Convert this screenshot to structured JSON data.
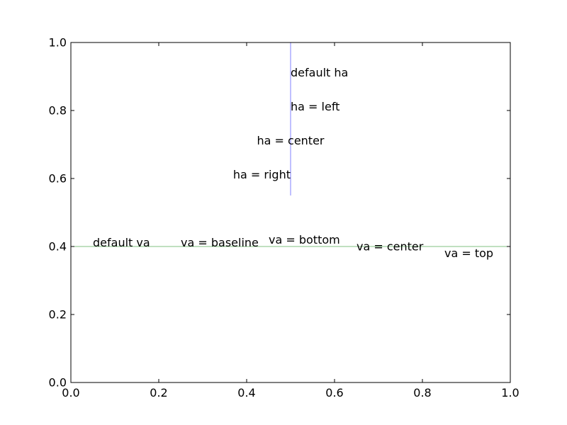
{
  "chart_data": {
    "type": "line",
    "title": "",
    "xlabel": "",
    "ylabel": "",
    "xlim": [
      0.0,
      1.0
    ],
    "ylim": [
      0.0,
      1.0
    ],
    "grid": false,
    "x_tick_labels": [
      "0.0",
      "0.2",
      "0.4",
      "0.6",
      "0.8",
      "1.0"
    ],
    "x_tick_values": [
      0.0,
      0.2,
      0.4,
      0.6,
      0.8,
      1.0
    ],
    "y_tick_labels": [
      "0.0",
      "0.2",
      "0.4",
      "0.6",
      "0.8",
      "1.0"
    ],
    "y_tick_values": [
      0.0,
      0.2,
      0.4,
      0.6,
      0.8,
      1.0
    ],
    "series": [
      {
        "color": "#8080ff",
        "x": [
          0.5,
          0.5
        ],
        "y": [
          0.55,
          1.0
        ]
      },
      {
        "color": "#80c080",
        "x": [
          0.0,
          1.0
        ],
        "y": [
          0.4,
          0.4
        ]
      }
    ],
    "annotations": [
      {
        "text": "default ha",
        "x": 0.5,
        "y": 0.9,
        "ha": "left",
        "va": "baseline"
      },
      {
        "text": "ha = left",
        "x": 0.5,
        "y": 0.8,
        "ha": "left",
        "va": "baseline"
      },
      {
        "text": "ha = center",
        "x": 0.5,
        "y": 0.7,
        "ha": "center",
        "va": "baseline"
      },
      {
        "text": "ha = right",
        "x": 0.5,
        "y": 0.6,
        "ha": "right",
        "va": "baseline"
      },
      {
        "text": "default va",
        "x": 0.05,
        "y": 0.4,
        "ha": "left",
        "va": "baseline"
      },
      {
        "text": "va = baseline",
        "x": 0.25,
        "y": 0.4,
        "ha": "left",
        "va": "baseline"
      },
      {
        "text": "va = bottom",
        "x": 0.45,
        "y": 0.4,
        "ha": "left",
        "va": "bottom"
      },
      {
        "text": "va = center",
        "x": 0.65,
        "y": 0.4,
        "ha": "left",
        "va": "center"
      },
      {
        "text": "va = top",
        "x": 0.85,
        "y": 0.4,
        "ha": "left",
        "va": "top"
      }
    ]
  }
}
